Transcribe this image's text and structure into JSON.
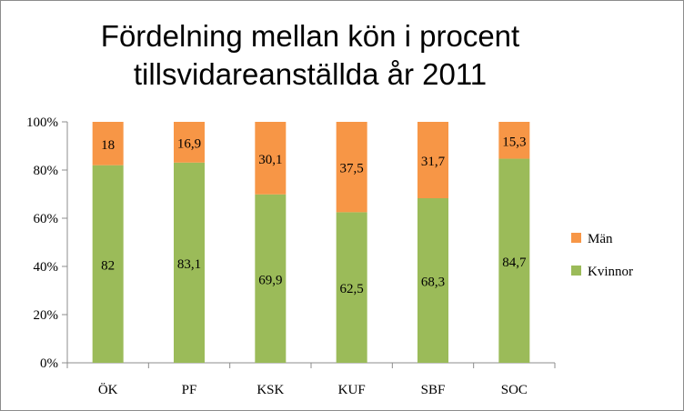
{
  "chart_data": {
    "type": "bar",
    "stacked": true,
    "title_lines": [
      "Fördelning mellan kön i procent",
      "tillsvidareanställda år 2011"
    ],
    "categories": [
      "ÖK",
      "PF",
      "KSK",
      "KUF",
      "SBF",
      "SOC"
    ],
    "series": [
      {
        "name": "Kvinnor",
        "values": [
          82,
          83.1,
          69.9,
          62.5,
          68.3,
          84.7
        ],
        "labels": [
          "82",
          "83,1",
          "69,9",
          "62,5",
          "68,3",
          "84,7"
        ],
        "color": "#9bbb59"
      },
      {
        "name": "Män",
        "values": [
          18,
          16.9,
          30.1,
          37.5,
          31.7,
          15.3
        ],
        "labels": [
          "18",
          "16,9",
          "30,1",
          "37,5",
          "31,7",
          "15,3"
        ],
        "color": "#f79646"
      }
    ],
    "y_ticks": [
      "0%",
      "20%",
      "40%",
      "60%",
      "80%",
      "100%"
    ],
    "ylim": [
      0,
      100
    ],
    "grid": false,
    "legend": {
      "position": "right",
      "order": [
        "Män",
        "Kvinnor"
      ]
    }
  }
}
